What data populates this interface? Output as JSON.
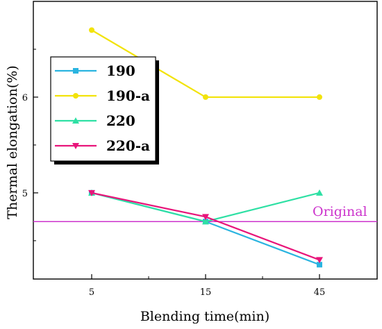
{
  "chart_data": {
    "type": "line",
    "xlabel": "Blending time(min)",
    "ylabel": "Thermal elongation(%)",
    "categories": [
      "5",
      "15",
      "45"
    ],
    "ylim": [
      4.1,
      7.0
    ],
    "yticks": [
      5,
      6
    ],
    "grid": false,
    "legend_position": "upper-left",
    "series": [
      {
        "name": "190",
        "color": "#2ab4e0",
        "marker": "square",
        "values": [
          5.0,
          4.7,
          4.25
        ]
      },
      {
        "name": "190-a",
        "color": "#f2e30a",
        "marker": "circle",
        "values": [
          6.7,
          6.0,
          6.0
        ]
      },
      {
        "name": "220",
        "color": "#2ee0a4",
        "marker": "triangle-up",
        "values": [
          5.0,
          4.7,
          5.0
        ]
      },
      {
        "name": "220-a",
        "color": "#e8157a",
        "marker": "triangle-down",
        "values": [
          5.0,
          4.75,
          4.3
        ]
      }
    ],
    "reference_line": {
      "label": "Original",
      "value": 4.7,
      "color": "#cc33cc"
    }
  }
}
